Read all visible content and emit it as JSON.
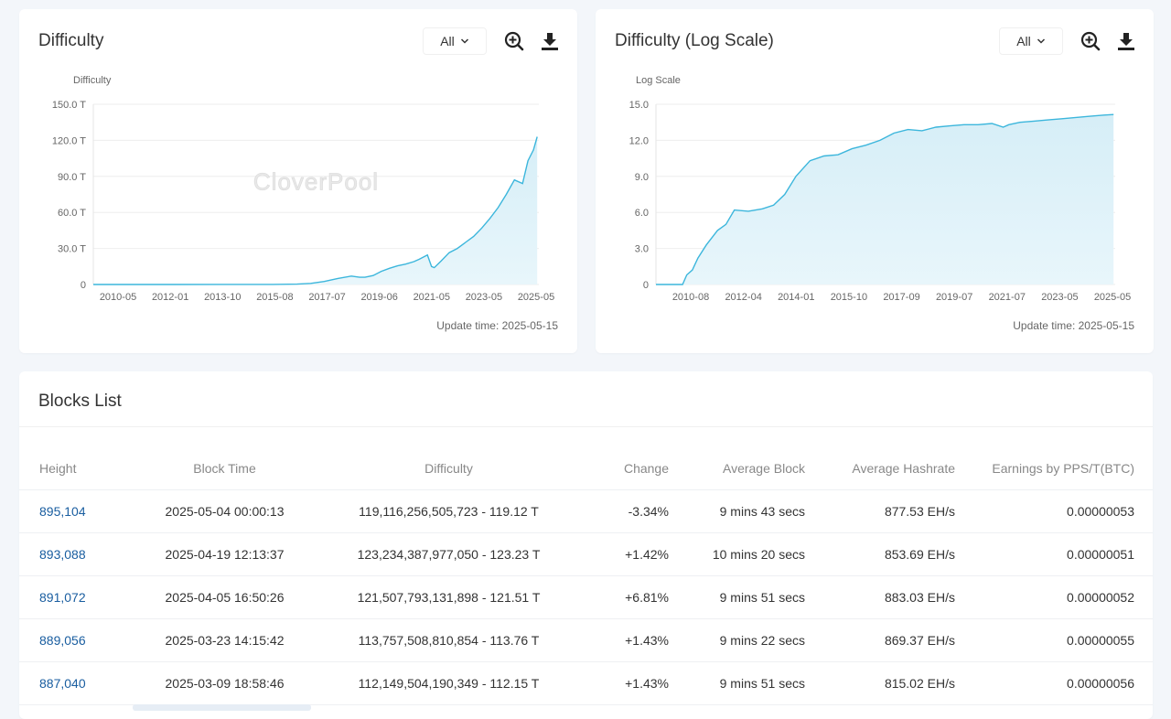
{
  "difficulty_card": {
    "title": "Difficulty",
    "filter_value": "All",
    "update_time": "Update time: 2025-05-15"
  },
  "log_card": {
    "title": "Difficulty (Log Scale)",
    "filter_value": "All",
    "update_time": "Update time: 2025-05-15"
  },
  "watermark": "CloverPool",
  "chart_data": [
    {
      "type": "area",
      "ylabel": "Difficulty",
      "yticks": [
        "0",
        "30.0 T",
        "60.0 T",
        "90.0 T",
        "120.0 T",
        "150.0 T"
      ],
      "xticks": [
        "2010-05",
        "2012-01",
        "2013-10",
        "2015-08",
        "2017-07",
        "2019-06",
        "2021-05",
        "2023-05",
        "2025-05"
      ],
      "ylim": [
        0,
        150
      ],
      "xlim": [
        2009.0,
        2025.4
      ],
      "color": "#3cb6dc",
      "x": [
        2009.0,
        2010.37,
        2012.0,
        2013.75,
        2015.6,
        2016.5,
        2017.0,
        2017.5,
        2018.0,
        2018.5,
        2018.8,
        2019.0,
        2019.3,
        2019.6,
        2019.9,
        2020.2,
        2020.5,
        2020.8,
        2021.0,
        2021.3,
        2021.45,
        2021.55,
        2021.8,
        2022.1,
        2022.4,
        2022.7,
        2023.0,
        2023.3,
        2023.6,
        2023.9,
        2024.2,
        2024.5,
        2024.8,
        2025.0,
        2025.2,
        2025.34
      ],
      "y": [
        0,
        0,
        0.01,
        0.1,
        0.05,
        0.3,
        0.9,
        2.5,
        5.0,
        7.0,
        6.0,
        6.0,
        7.5,
        11.0,
        13.5,
        15.5,
        17.0,
        19.0,
        21.0,
        24.5,
        15.0,
        14.0,
        19.5,
        26.5,
        30.0,
        35.0,
        40.0,
        47.0,
        55.0,
        64.0,
        75.0,
        87.0,
        84.0,
        103.0,
        112.0,
        123.0
      ]
    },
    {
      "type": "area",
      "ylabel": "Log Scale",
      "yticks": [
        "0",
        "3.0",
        "6.0",
        "9.0",
        "12.0",
        "15.0"
      ],
      "xticks": [
        "2010-08",
        "2012-04",
        "2014-01",
        "2015-10",
        "2017-09",
        "2019-07",
        "2021-07",
        "2023-05",
        "2025-05"
      ],
      "ylim": [
        0,
        15
      ],
      "xlim": [
        2009.0,
        2025.4
      ],
      "color": "#3cb6dc",
      "x": [
        2009.0,
        2009.95,
        2010.1,
        2010.3,
        2010.5,
        2010.8,
        2011.2,
        2011.5,
        2011.8,
        2012.3,
        2012.8,
        2013.2,
        2013.6,
        2014.0,
        2014.5,
        2015.0,
        2015.5,
        2016.0,
        2016.5,
        2017.0,
        2017.5,
        2018.0,
        2018.5,
        2019.0,
        2019.5,
        2020.0,
        2020.5,
        2021.0,
        2021.4,
        2021.6,
        2022.0,
        2022.5,
        2023.0,
        2023.5,
        2024.0,
        2024.5,
        2025.0,
        2025.34
      ],
      "y": [
        0,
        0,
        0.8,
        1.2,
        2.2,
        3.3,
        4.5,
        5.0,
        6.2,
        6.1,
        6.3,
        6.6,
        7.5,
        9.0,
        10.3,
        10.7,
        10.8,
        11.3,
        11.6,
        12.0,
        12.6,
        12.9,
        12.8,
        13.1,
        13.2,
        13.3,
        13.3,
        13.4,
        13.1,
        13.3,
        13.5,
        13.6,
        13.7,
        13.8,
        13.9,
        14.0,
        14.1,
        14.15
      ]
    }
  ],
  "blocks_list": {
    "title": "Blocks List",
    "headers": {
      "height": "Height",
      "block_time": "Block Time",
      "difficulty": "Difficulty",
      "change": "Change",
      "average_block": "Average Block",
      "average_hashrate": "Average Hashrate",
      "earnings": "Earnings by PPS/T(BTC)"
    },
    "rows": [
      {
        "height": "895,104",
        "block_time": "2025-05-04 00:00:13",
        "difficulty": "119,116,256,505,723 - 119.12 T",
        "change": "-3.34%",
        "average_block": "9 mins 43 secs",
        "average_hashrate": "877.53 EH/s",
        "earnings": "0.00000053"
      },
      {
        "height": "893,088",
        "block_time": "2025-04-19 12:13:37",
        "difficulty": "123,234,387,977,050 - 123.23 T",
        "change": "+1.42%",
        "average_block": "10 mins 20 secs",
        "average_hashrate": "853.69 EH/s",
        "earnings": "0.00000051"
      },
      {
        "height": "891,072",
        "block_time": "2025-04-05 16:50:26",
        "difficulty": "121,507,793,131,898 - 121.51 T",
        "change": "+6.81%",
        "average_block": "9 mins 51 secs",
        "average_hashrate": "883.03 EH/s",
        "earnings": "0.00000052"
      },
      {
        "height": "889,056",
        "block_time": "2025-03-23 14:15:42",
        "difficulty": "113,757,508,810,854 - 113.76 T",
        "change": "+1.43%",
        "average_block": "9 mins 22 secs",
        "average_hashrate": "869.37 EH/s",
        "earnings": "0.00000055"
      },
      {
        "height": "887,040",
        "block_time": "2025-03-09 18:58:46",
        "difficulty": "112,149,504,190,349 - 112.15 T",
        "change": "+1.43%",
        "average_block": "9 mins 51 secs",
        "average_hashrate": "815.02 EH/s",
        "earnings": "0.00000056"
      }
    ]
  }
}
